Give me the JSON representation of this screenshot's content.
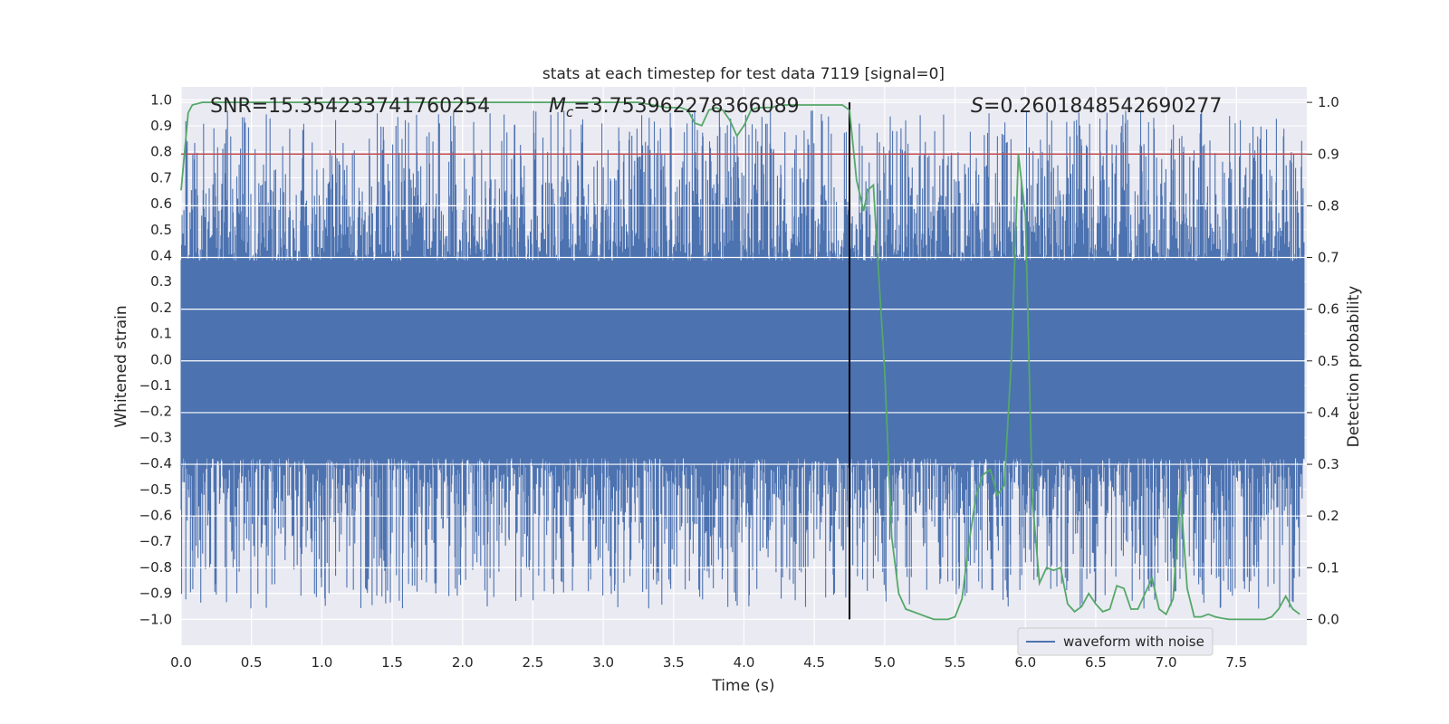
{
  "chart_data": {
    "type": "line",
    "title": "stats at each timestep for test data 7119 [signal=0]",
    "xlabel": "Time (s)",
    "ylabel_left": "Whitened strain",
    "ylabel_right": "Detection probability",
    "xlim": [
      0.0,
      8.0
    ],
    "ylim_left": [
      -1.1,
      1.05
    ],
    "ylim_right": [
      -0.05,
      1.03
    ],
    "x_ticks": [
      "0.0",
      "0.5",
      "1.0",
      "1.5",
      "2.0",
      "2.5",
      "3.0",
      "3.5",
      "4.0",
      "4.5",
      "5.0",
      "5.5",
      "6.0",
      "6.5",
      "7.0",
      "7.5"
    ],
    "y_left_ticks": [
      "1.0",
      "0.9",
      "0.8",
      "0.7",
      "0.6",
      "0.5",
      "0.4",
      "0.3",
      "0.2",
      "0.1",
      "0.0",
      "−0.1",
      "−0.2",
      "−0.3",
      "−0.4",
      "−0.5",
      "−0.6",
      "−0.7",
      "−0.8",
      "−0.9",
      "−1.0"
    ],
    "y_right_ticks": [
      "1.0",
      "0.9",
      "0.8",
      "0.7",
      "0.6",
      "0.5",
      "0.4",
      "0.3",
      "0.2",
      "0.1",
      "0.0"
    ],
    "annotations": {
      "snr": "SNR=15.354233741760254",
      "mc_symbol": "M",
      "mc_sub": "c",
      "mc_value": "=3.753962278366089",
      "s_symbol": "S",
      "s_value": "=0.2601848542690277"
    },
    "legend": {
      "label": "waveform with noise",
      "position": "lower-right"
    },
    "threshold_line": {
      "value": 0.9,
      "axis": "right",
      "color": "#c44e52"
    },
    "vertical_marker": {
      "x": 4.75,
      "ymin": 0.0,
      "ymax": 1.0,
      "axis": "right",
      "color": "#000000"
    },
    "waveform": {
      "name": "waveform with noise",
      "color": "#4c72b0",
      "core_amplitude": 0.38,
      "peak_amplitude": 0.96,
      "x_range": [
        0.0,
        7.98
      ]
    },
    "series": [
      {
        "name": "detection probability",
        "axis": "right",
        "color": "#55a868",
        "x": [
          0.0,
          0.05,
          0.08,
          0.15,
          0.3,
          0.5,
          0.75,
          1.0,
          1.5,
          2.0,
          2.25,
          2.5,
          3.0,
          3.25,
          3.35,
          3.45,
          3.5,
          3.55,
          3.6,
          3.65,
          3.7,
          3.75,
          3.8,
          3.85,
          3.9,
          3.95,
          4.0,
          4.05,
          4.1,
          4.15,
          4.2,
          4.25,
          4.5,
          4.7,
          4.75,
          4.8,
          4.85,
          4.88,
          4.92,
          4.95,
          5.0,
          5.05,
          5.1,
          5.15,
          5.2,
          5.3,
          5.35,
          5.4,
          5.45,
          5.5,
          5.55,
          5.6,
          5.65,
          5.7,
          5.75,
          5.8,
          5.85,
          5.9,
          5.95,
          6.0,
          6.05,
          6.1,
          6.15,
          6.2,
          6.25,
          6.3,
          6.35,
          6.4,
          6.45,
          6.5,
          6.55,
          6.6,
          6.65,
          6.7,
          6.75,
          6.8,
          6.85,
          6.9,
          6.95,
          7.0,
          7.05,
          7.1,
          7.15,
          7.2,
          7.25,
          7.3,
          7.35,
          7.4,
          7.45,
          7.5,
          7.55,
          7.6,
          7.65,
          7.7,
          7.75,
          7.8,
          7.85,
          7.9,
          7.95
        ],
        "y": [
          0.83,
          0.98,
          0.995,
          1.0,
          1.0,
          1.0,
          1.0,
          1.0,
          1.0,
          1.0,
          1.0,
          1.0,
          1.0,
          1.0,
          0.995,
          0.99,
          0.99,
          0.99,
          0.985,
          0.96,
          0.955,
          0.985,
          0.99,
          0.985,
          0.965,
          0.935,
          0.955,
          0.985,
          0.99,
          0.99,
          0.99,
          0.995,
          0.995,
          0.995,
          0.985,
          0.85,
          0.79,
          0.83,
          0.84,
          0.7,
          0.48,
          0.16,
          0.05,
          0.02,
          0.015,
          0.005,
          0.0,
          0.0,
          0.0,
          0.005,
          0.04,
          0.15,
          0.24,
          0.28,
          0.29,
          0.24,
          0.26,
          0.5,
          0.9,
          0.78,
          0.23,
          0.07,
          0.1,
          0.095,
          0.1,
          0.03,
          0.015,
          0.025,
          0.05,
          0.03,
          0.015,
          0.02,
          0.065,
          0.06,
          0.02,
          0.02,
          0.05,
          0.08,
          0.02,
          0.01,
          0.04,
          0.25,
          0.06,
          0.005,
          0.005,
          0.01,
          0.005,
          0.002,
          0.0,
          0.0,
          0.0,
          0.0,
          0.0,
          0.0,
          0.005,
          0.02,
          0.045,
          0.02,
          0.01
        ]
      }
    ]
  }
}
